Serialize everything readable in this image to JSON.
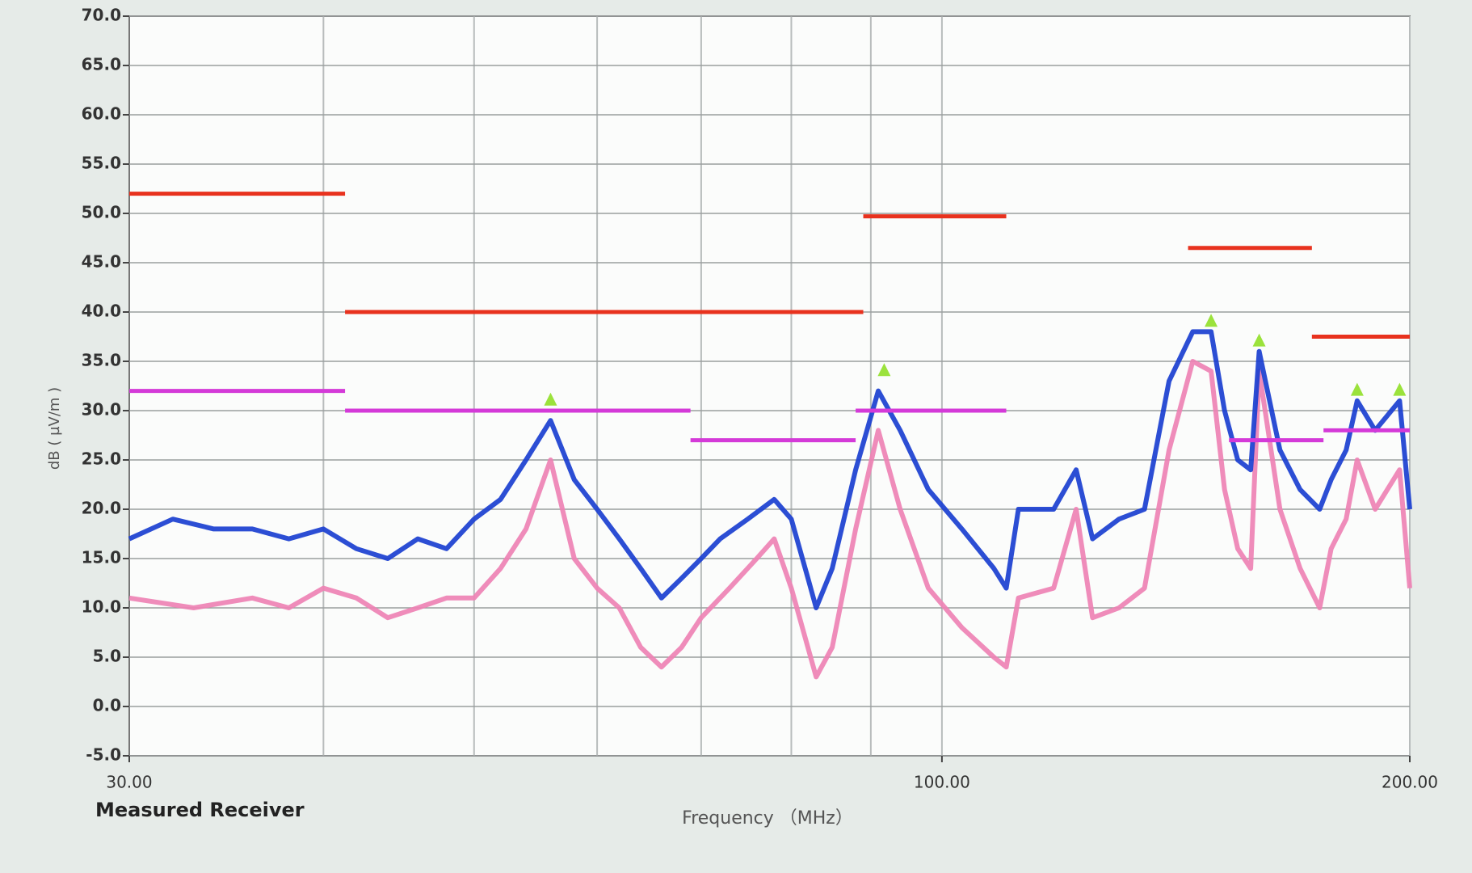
{
  "chart_data": {
    "type": "line",
    "footer_label": "Measured Receiver",
    "x_label": "Frequency （MHz）",
    "y_label": "dB ( µV/m )",
    "xscale": "log",
    "xlim": [
      30,
      200
    ],
    "ylim": [
      -5,
      70
    ],
    "xticks": [
      {
        "value": 30,
        "label": "30.00"
      },
      {
        "value": 100,
        "label": "100.00"
      },
      {
        "value": 200,
        "label": "200.00"
      }
    ],
    "xgrid": [
      40,
      50,
      60,
      70,
      80,
      90,
      100,
      200
    ],
    "yticks": [
      {
        "value": -5,
        "label": "-5.0"
      },
      {
        "value": 0,
        "label": "0.0"
      },
      {
        "value": 5,
        "label": "5.0"
      },
      {
        "value": 10,
        "label": "10.0"
      },
      {
        "value": 15,
        "label": "15.0"
      },
      {
        "value": 20,
        "label": "20.0"
      },
      {
        "value": 25,
        "label": "25.0"
      },
      {
        "value": 30,
        "label": "30.0"
      },
      {
        "value": 35,
        "label": "35.0"
      },
      {
        "value": 40,
        "label": "40.0"
      },
      {
        "value": 45,
        "label": "45.0"
      },
      {
        "value": 50,
        "label": "50.0"
      },
      {
        "value": 55,
        "label": "55.0"
      },
      {
        "value": 60,
        "label": "60.0"
      },
      {
        "value": 65,
        "label": "65.0"
      },
      {
        "value": 70,
        "label": "70.0"
      }
    ],
    "grid": true,
    "series": [
      {
        "color": "#ee82b4",
        "x": [
          30,
          33,
          36,
          38,
          40,
          42,
          44,
          46,
          48,
          50,
          52,
          54,
          56,
          58,
          60,
          62,
          64,
          66,
          68,
          70,
          73,
          76,
          78,
          80,
          83,
          85,
          88,
          91,
          94,
          98,
          103,
          108,
          110,
          112,
          118,
          122,
          125,
          130,
          135,
          140,
          145,
          149,
          152,
          155,
          158,
          160,
          165,
          170,
          175,
          178,
          182,
          185,
          190,
          197,
          200
        ],
        "values": [
          11,
          10,
          11,
          10,
          12,
          11,
          9,
          10,
          11,
          11,
          14,
          18,
          25,
          15,
          12,
          10,
          6,
          4,
          6,
          9,
          12,
          15,
          17,
          12,
          3,
          6,
          18,
          28,
          20,
          12,
          8,
          5,
          4,
          11,
          12,
          20,
          9,
          10,
          12,
          26,
          35,
          34,
          22,
          16,
          14,
          34,
          20,
          14,
          10,
          16,
          19,
          25,
          20,
          24,
          12
        ]
      },
      {
        "color": "#1a3fd0",
        "x": [
          30,
          32,
          34,
          36,
          38,
          40,
          42,
          44,
          46,
          48,
          50,
          52,
          54,
          56,
          58,
          60,
          62,
          64,
          66,
          68,
          70,
          72,
          75,
          78,
          80,
          82,
          83,
          85,
          88,
          91,
          94,
          98,
          103,
          108,
          110,
          112,
          118,
          122,
          125,
          130,
          135,
          140,
          145,
          149,
          152,
          155,
          158,
          160,
          165,
          170,
          175,
          178,
          182,
          185,
          190,
          197,
          200
        ],
        "values": [
          17,
          19,
          18,
          18,
          17,
          18,
          16,
          15,
          17,
          16,
          19,
          21,
          25,
          29,
          23,
          20,
          17,
          14,
          11,
          13,
          15,
          17,
          19,
          21,
          19,
          13,
          10,
          14,
          24,
          32,
          28,
          22,
          18,
          14,
          12,
          20,
          20,
          24,
          17,
          19,
          20,
          33,
          38,
          38,
          30,
          25,
          24,
          36,
          26,
          22,
          20,
          23,
          26,
          31,
          28,
          31,
          20
        ]
      }
    ],
    "limit_lines": [
      {
        "color": "#e8321e",
        "segments": [
          {
            "x": [
              30,
              41.3
            ],
            "value": 52
          },
          {
            "x": [
              41.3,
              89
            ],
            "value": 40
          },
          {
            "x": [
              89,
              110
            ],
            "value": 49.7
          },
          {
            "x": [
              144,
              173
            ],
            "value": 46.5
          },
          {
            "x": [
              173,
              200
            ],
            "value": 37.5
          }
        ]
      },
      {
        "color": "#d43ad8",
        "segments": [
          {
            "x": [
              30,
              41.3
            ],
            "value": 32
          },
          {
            "x": [
              41.3,
              68.9
            ],
            "value": 30
          },
          {
            "x": [
              68.9,
              88
            ],
            "value": 27
          },
          {
            "x": [
              88,
              110
            ],
            "value": 30
          },
          {
            "x": [
              153,
              176
            ],
            "value": 27
          },
          {
            "x": [
              176,
              200
            ],
            "value": 28
          }
        ]
      }
    ],
    "markers": {
      "color": "#9be23c",
      "x": [
        56,
        91.8,
        149,
        160,
        185,
        197
      ],
      "values": [
        31,
        34,
        39,
        37,
        32,
        32
      ]
    }
  }
}
